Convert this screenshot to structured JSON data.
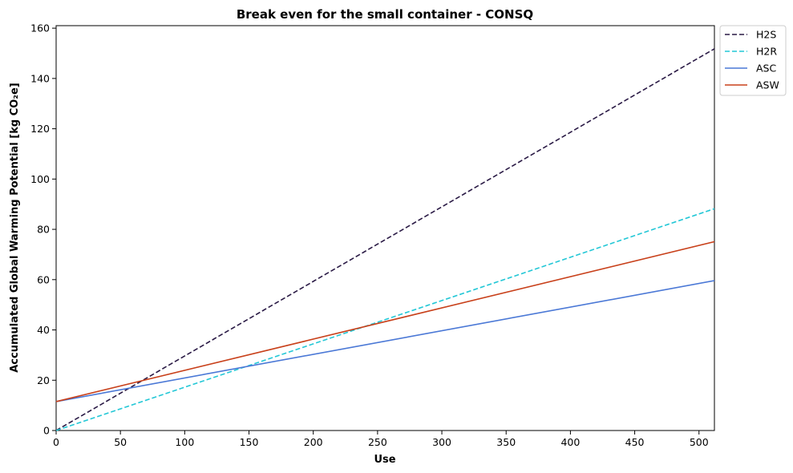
{
  "chart_data": {
    "type": "line",
    "title": "Break even for the small container - CONSQ",
    "xlabel": "Use",
    "ylabel": "Accumulated Global Warming Potential [kg CO₂e]",
    "xlim": [
      0,
      512
    ],
    "ylim": [
      0,
      161
    ],
    "xticks": [
      0,
      50,
      100,
      150,
      200,
      250,
      300,
      350,
      400,
      450,
      500
    ],
    "yticks": [
      0,
      20,
      40,
      60,
      80,
      100,
      120,
      140,
      160
    ],
    "grid": false,
    "legend_position": "outside top-right",
    "series": [
      {
        "name": "H2S",
        "style": "dashed",
        "color": "#2a1a45",
        "x": [
          0,
          512
        ],
        "y": [
          0.0,
          151.8
        ]
      },
      {
        "name": "H2R",
        "style": "dashed",
        "color": "#22c7d6",
        "x": [
          0,
          512
        ],
        "y": [
          0.0,
          88.2
        ]
      },
      {
        "name": "ASC",
        "style": "solid",
        "color": "#4a78d6",
        "x": [
          0,
          512
        ],
        "y": [
          11.5,
          59.6
        ]
      },
      {
        "name": "ASW",
        "style": "solid",
        "color": "#c8401a",
        "x": [
          0,
          512
        ],
        "y": [
          11.5,
          75.1
        ]
      }
    ]
  }
}
